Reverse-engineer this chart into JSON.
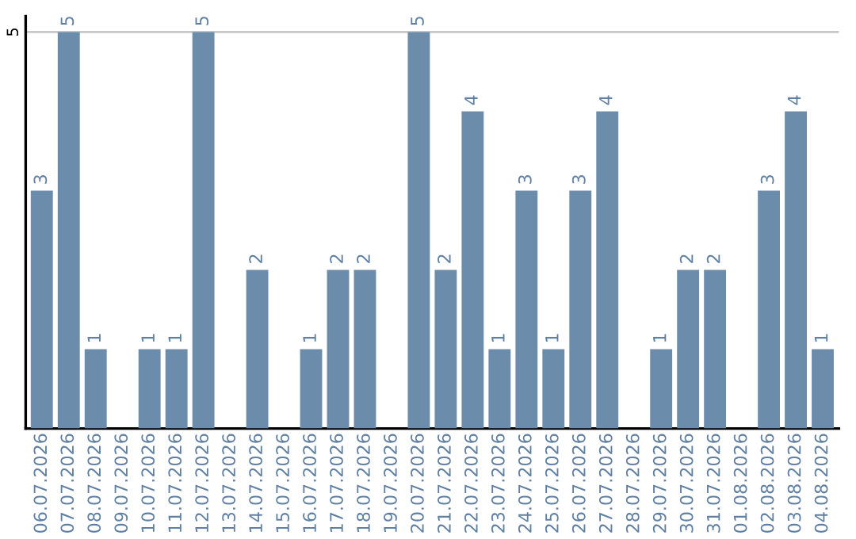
{
  "chart_data": {
    "type": "bar",
    "categories": [
      "06.07.2026",
      "07.07.2026",
      "08.07.2026",
      "09.07.2026",
      "10.07.2026",
      "11.07.2026",
      "12.07.2026",
      "13.07.2026",
      "14.07.2026",
      "15.07.2026",
      "16.07.2026",
      "17.07.2026",
      "18.07.2026",
      "19.07.2026",
      "20.07.2026",
      "21.07.2026",
      "22.07.2026",
      "23.07.2026",
      "24.07.2026",
      "25.07.2026",
      "26.07.2026",
      "27.07.2026",
      "28.07.2026",
      "29.07.2026",
      "30.07.2026",
      "31.07.2026",
      "01.08.2026",
      "02.08.2026",
      "03.08.2026",
      "04.08.2026"
    ],
    "values": [
      3,
      5,
      1,
      null,
      1,
      1,
      5,
      null,
      2,
      null,
      1,
      2,
      2,
      null,
      5,
      2,
      4,
      1,
      3,
      1,
      3,
      4,
      null,
      1,
      2,
      2,
      null,
      3,
      4,
      1
    ],
    "color": "#6b8cab",
    "ylim": [
      0,
      5.2
    ],
    "yticks": [
      5
    ],
    "grid": "y",
    "data_labels": true
  }
}
